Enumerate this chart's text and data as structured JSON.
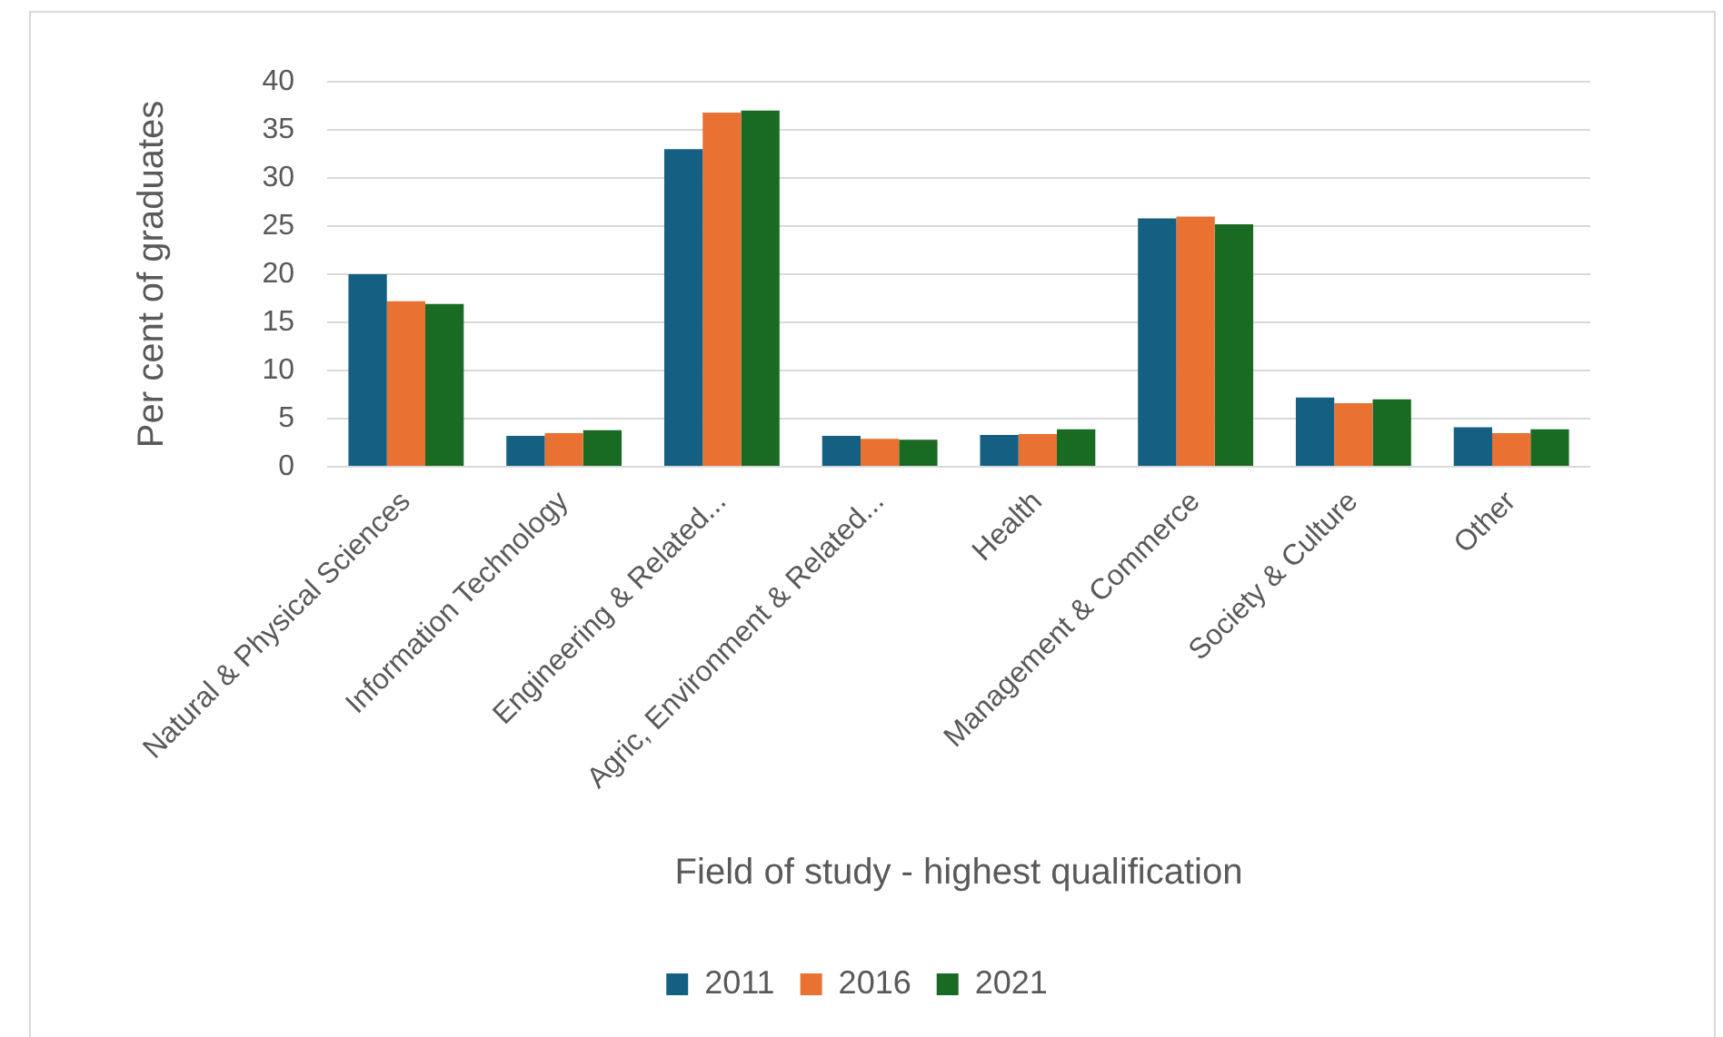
{
  "chart_data": {
    "type": "bar",
    "xlabel": "Field of study - highest qualification",
    "ylabel": "Per cent of graduates",
    "categories": [
      "Natural & Physical Sciences",
      "Information Technology",
      "Engineering & Related...",
      "Agric, Environment & Related...",
      "Health",
      "Management & Commerce",
      "Society & Culture",
      "Other"
    ],
    "series": [
      {
        "name": "2011",
        "color": "#156082",
        "values": [
          20,
          3.2,
          33,
          3.2,
          3.3,
          25.8,
          7.2,
          4.1
        ]
      },
      {
        "name": "2016",
        "color": "#e97132",
        "values": [
          17.2,
          3.5,
          36.8,
          2.9,
          3.4,
          26,
          6.6,
          3.5
        ]
      },
      {
        "name": "2021",
        "color": "#196b24",
        "values": [
          16.9,
          3.8,
          37,
          2.8,
          3.9,
          25.2,
          7,
          3.9
        ]
      }
    ],
    "ylim": [
      0,
      40
    ],
    "yticks": [
      0,
      5,
      10,
      15,
      20,
      25,
      30,
      35,
      40
    ],
    "grid": "y",
    "legend": "bottom"
  }
}
